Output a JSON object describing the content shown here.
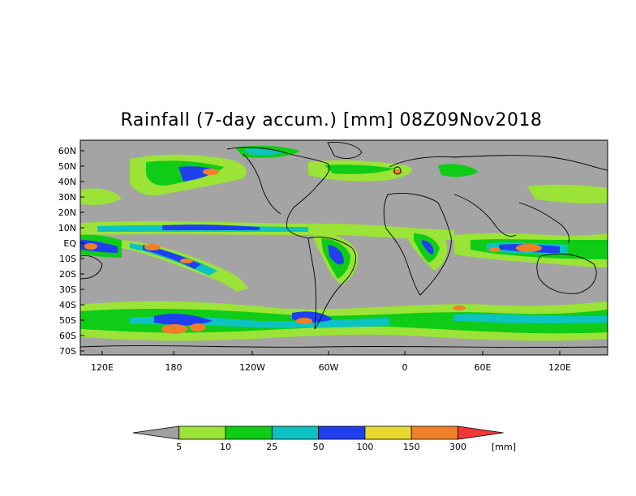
{
  "title": "Rainfall (7-day accum.) [mm] 08Z09Nov2018",
  "lat_labels": [
    "60N",
    "50N",
    "40N",
    "30N",
    "20N",
    "10N",
    "EQ",
    "10S",
    "20S",
    "30S",
    "40S",
    "50S",
    "60S",
    "70S"
  ],
  "lon_labels": [
    "120E",
    "180",
    "120W",
    "60W",
    "0",
    "60E",
    "120E"
  ],
  "colorbar": {
    "ticks": [
      "5",
      "10",
      "25",
      "50",
      "100",
      "150",
      "300"
    ],
    "unit": "[mm]",
    "colors": [
      "#a0a0a0",
      "#9be336",
      "#0fcc16",
      "#0dc2c2",
      "#2040f0",
      "#e8d830",
      "#f08028",
      "#f03838"
    ]
  },
  "colors": {
    "land_background": "#a4a4a4",
    "coastline": "#000000"
  }
}
